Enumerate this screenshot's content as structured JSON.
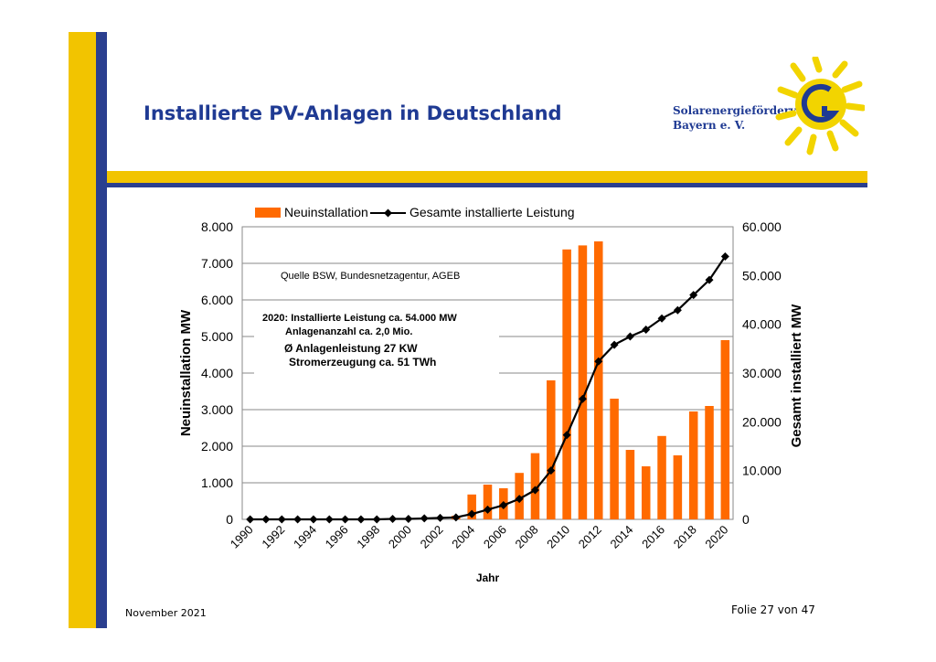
{
  "slide": {
    "title": "Installierte PV-Anlagen in Deutschland",
    "org_line1": "Solarenergieförderverein",
    "org_line2": "Bayern e. V.",
    "footer_date": "November 2021",
    "footer_page": "Folie 27 von 47"
  },
  "colors": {
    "accent_yellow": "#f2c400",
    "accent_blue": "#2a3f8f",
    "title_blue": "#1f3a93",
    "bar": "#ff6a00",
    "line": "#000000"
  },
  "chart_data": {
    "type": "bar",
    "xlabel": "Jahr",
    "ylabel_left": "Neuinstallation MW",
    "ylabel_right": "Gesamt installiert MW",
    "ylim_left": [
      0,
      8000
    ],
    "ylim_right": [
      0,
      60000
    ],
    "yticks_left": [
      "0",
      "1.000",
      "2.000",
      "3.000",
      "4.000",
      "5.000",
      "6.000",
      "7.000",
      "8.000"
    ],
    "yticks_right": [
      "0",
      "10.000",
      "20.000",
      "30.000",
      "40.000",
      "50.000",
      "60.000"
    ],
    "xtick_labels": [
      "1990",
      "1992",
      "1994",
      "1996",
      "1998",
      "2000",
      "2002",
      "2004",
      "2006",
      "2008",
      "2010",
      "2012",
      "2014",
      "2016",
      "2018",
      "2020"
    ],
    "legend": [
      "Neuinstallation",
      "Gesamte installierte Leistung"
    ],
    "legend_position": "top",
    "grid": true,
    "annotations": [
      "Quelle BSW, Bundesnetzagentur, AGEB",
      "2020: Installierte Leistung ca. 54.000 MW",
      "Anlagenanzahl ca. 2,0 Mio.",
      "Ø Anlagenleistung 27 KW",
      "Stromerzeugung ca. 51 TWh"
    ],
    "x": [
      1990,
      1991,
      1992,
      1993,
      1994,
      1995,
      1996,
      1997,
      1998,
      1999,
      2000,
      2001,
      2002,
      2003,
      2004,
      2005,
      2006,
      2007,
      2008,
      2009,
      2010,
      2011,
      2012,
      2013,
      2014,
      2015,
      2016,
      2017,
      2018,
      2019,
      2020
    ],
    "series": [
      {
        "name": "Neuinstallation",
        "type": "bar",
        "axis": "left",
        "values": [
          0,
          0,
          0,
          0,
          0,
          0,
          0,
          0,
          0,
          0,
          0,
          0,
          0,
          100,
          680,
          950,
          850,
          1270,
          1810,
          3800,
          7380,
          7490,
          7600,
          3300,
          1900,
          1450,
          2280,
          1750,
          2950,
          3100,
          4900
        ]
      },
      {
        "name": "Gesamte installierte Leistung",
        "type": "line",
        "axis": "right",
        "values": [
          0,
          0,
          0,
          0,
          0,
          0,
          0,
          0,
          0,
          100,
          100,
          200,
          300,
          400,
          1100,
          2000,
          2900,
          4200,
          6000,
          10000,
          17300,
          24700,
          32400,
          35800,
          37500,
          38900,
          41200,
          42900,
          46000,
          49100,
          53900
        ]
      }
    ]
  }
}
